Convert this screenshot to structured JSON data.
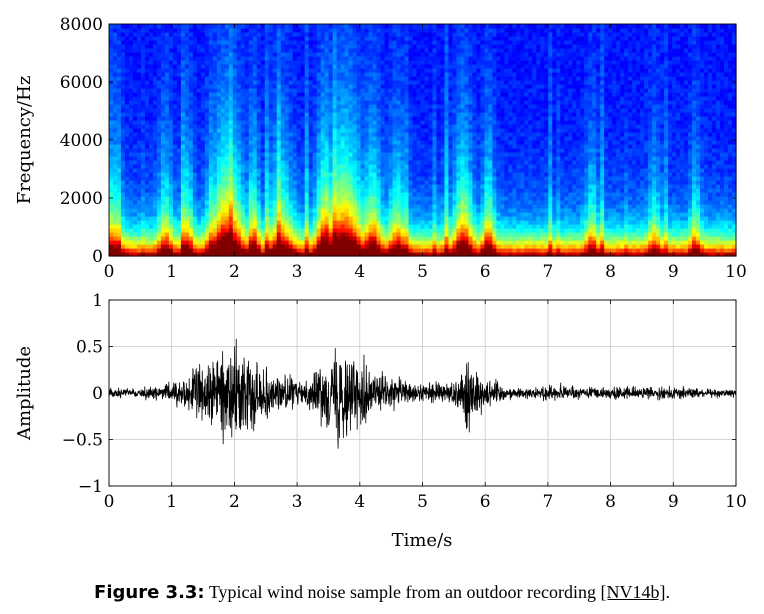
{
  "chart_data": [
    {
      "type": "heatmap",
      "ylabel": "Frequency/Hz",
      "xlim": [
        0,
        10
      ],
      "ylim": [
        0,
        8000
      ],
      "x_ticks": [
        "0",
        "1",
        "2",
        "3",
        "4",
        "5",
        "6",
        "7",
        "8",
        "9",
        "10"
      ],
      "y_ticks": [
        "0",
        "2000",
        "4000",
        "6000",
        "8000"
      ],
      "colormap": "jet",
      "energy_events": [
        {
          "t": 0.05,
          "width": 0.15,
          "strength": 0.55
        },
        {
          "t": 0.9,
          "width": 0.12,
          "strength": 0.5
        },
        {
          "t": 1.25,
          "width": 0.1,
          "strength": 0.55
        },
        {
          "t": 1.65,
          "width": 0.1,
          "strength": 0.6
        },
        {
          "t": 1.88,
          "width": 0.25,
          "strength": 1.0
        },
        {
          "t": 2.3,
          "width": 0.1,
          "strength": 0.65
        },
        {
          "t": 2.75,
          "width": 0.2,
          "strength": 0.6
        },
        {
          "t": 3.45,
          "width": 0.15,
          "strength": 0.9
        },
        {
          "t": 3.75,
          "width": 0.3,
          "strength": 1.0
        },
        {
          "t": 4.2,
          "width": 0.15,
          "strength": 0.7
        },
        {
          "t": 4.6,
          "width": 0.15,
          "strength": 0.55
        },
        {
          "t": 5.65,
          "width": 0.15,
          "strength": 0.75
        },
        {
          "t": 6.05,
          "width": 0.1,
          "strength": 0.6
        },
        {
          "t": 7.7,
          "width": 0.1,
          "strength": 0.45
        },
        {
          "t": 8.7,
          "width": 0.1,
          "strength": 0.4
        },
        {
          "t": 9.35,
          "width": 0.08,
          "strength": 0.45
        }
      ]
    },
    {
      "type": "line",
      "xlabel": "Time/s",
      "ylabel": "Amplitude",
      "xlim": [
        0,
        10
      ],
      "ylim": [
        -1,
        1
      ],
      "x_ticks": [
        "0",
        "1",
        "2",
        "3",
        "4",
        "5",
        "6",
        "7",
        "8",
        "9",
        "10"
      ],
      "y_ticks": [
        "1",
        "0.5",
        "0",
        "−0.5",
        "−1"
      ],
      "grid": true,
      "line_color": "#000000",
      "envelope": {
        "t": [
          0,
          0.4,
          0.8,
          1.0,
          1.2,
          1.5,
          1.8,
          2.0,
          2.2,
          2.5,
          2.8,
          3.1,
          3.4,
          3.6,
          3.7,
          3.9,
          4.2,
          4.6,
          5.0,
          5.4,
          5.6,
          5.75,
          5.9,
          6.1,
          6.4,
          6.7,
          7.0,
          7.5,
          8.0,
          8.5,
          9.0,
          9.5,
          10.0
        ],
        "a": [
          0.06,
          0.05,
          0.07,
          0.12,
          0.2,
          0.3,
          0.45,
          0.5,
          0.42,
          0.28,
          0.2,
          0.12,
          0.3,
          0.45,
          0.6,
          0.45,
          0.25,
          0.15,
          0.1,
          0.12,
          0.2,
          0.45,
          0.25,
          0.15,
          0.06,
          0.05,
          0.08,
          0.06,
          0.07,
          0.06,
          0.07,
          0.05,
          0.04
        ]
      }
    }
  ],
  "caption": {
    "label": "Figure 3.3:",
    "text": " Typical wind noise sample from an outdoor recording ",
    "ref": "[NV14b]",
    "end": "."
  }
}
